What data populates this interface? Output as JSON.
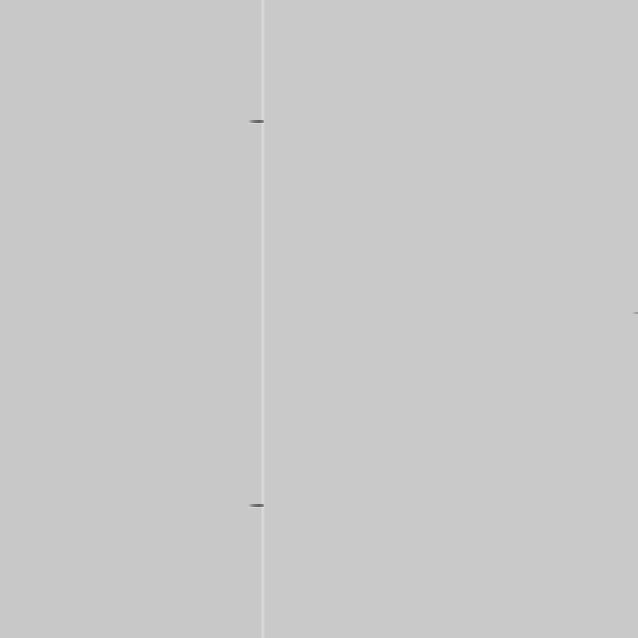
{
  "colors": {
    "background": "#c9c9c9",
    "splitter_highlight": "#dadada",
    "grip": "#6a6a6a"
  },
  "panes": [
    {
      "name": "left-pane"
    },
    {
      "name": "right-pane"
    }
  ],
  "splitter": {
    "orientation": "vertical",
    "grips": [
      "top",
      "bottom"
    ]
  }
}
